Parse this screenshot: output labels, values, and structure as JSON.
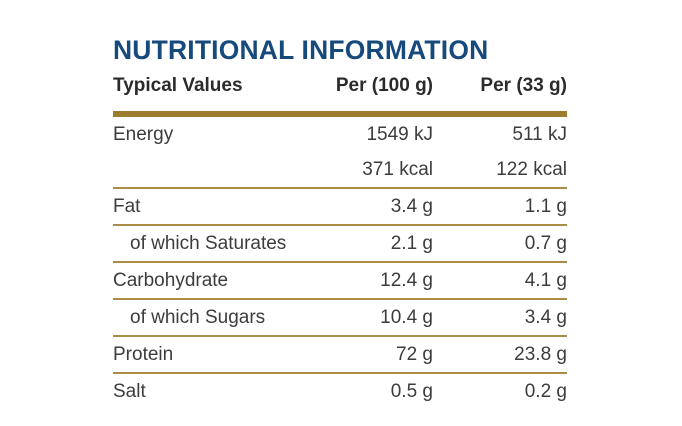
{
  "title": "NUTRITIONAL INFORMATION",
  "table": {
    "columns": [
      "Typical Values",
      "Per (100 g)",
      "Per (33 g)"
    ],
    "rows": [
      {
        "label": "Energy",
        "per100": "1549 kJ",
        "per33": "511 kJ",
        "indent": false,
        "continuation_next": true
      },
      {
        "label": "",
        "per100": "371 kcal",
        "per33": "122 kcal",
        "indent": false,
        "continuation_next": false
      },
      {
        "label": "Fat",
        "per100": "3.4 g",
        "per33": "1.1 g",
        "indent": false,
        "continuation_next": false
      },
      {
        "label": "of which Saturates",
        "per100": "2.1 g",
        "per33": "0.7 g",
        "indent": true,
        "continuation_next": false
      },
      {
        "label": "Carbohydrate",
        "per100": "12.4 g",
        "per33": "4.1 g",
        "indent": false,
        "continuation_next": false
      },
      {
        "label": "of which Sugars",
        "per100": "10.4 g",
        "per33": "3.4 g",
        "indent": true,
        "continuation_next": false
      },
      {
        "label": "Protein",
        "per100": "72 g",
        "per33": "23.8 g",
        "indent": false,
        "continuation_next": false
      },
      {
        "label": "Salt",
        "per100": "0.5 g",
        "per33": "0.2 g",
        "indent": false,
        "continuation_next": false
      }
    ]
  },
  "colors": {
    "title_blue": "#174a7c",
    "header_text": "#2b2b2b",
    "body_text": "#3c3c3c",
    "rule_thick_gold": "#9e7c2e",
    "rule_thin_gold": "#ab8b46",
    "background": "#ffffff"
  }
}
